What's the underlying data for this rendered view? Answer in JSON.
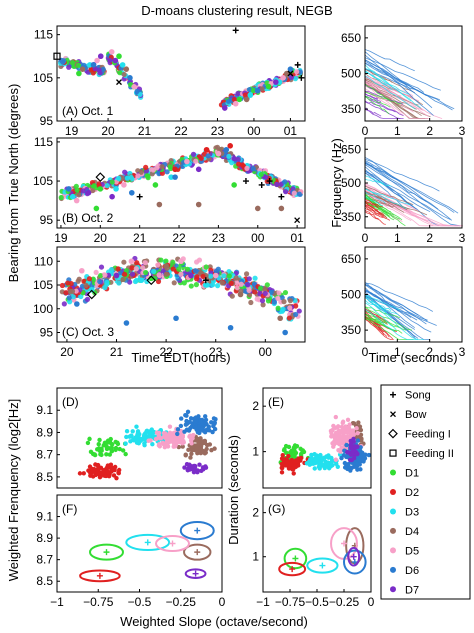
{
  "title": "D-moans clustering result, NEGB",
  "colors": {
    "D1": "#33dd33",
    "D2": "#e02020",
    "D3": "#22e0ee",
    "D4": "#9a6b5e",
    "D5": "#f7a0c8",
    "D6": "#2a7bd0",
    "D7": "#7a2cc8",
    "marker": "#000000"
  },
  "legend": {
    "items": [
      {
        "key": "song",
        "label": "Song",
        "symbol": "plus"
      },
      {
        "key": "bow",
        "label": "Bow",
        "symbol": "cross"
      },
      {
        "key": "feeding1",
        "label": "Feeding I",
        "symbol": "diamond"
      },
      {
        "key": "feeding2",
        "label": "Feeding II",
        "symbol": "square"
      },
      {
        "key": "D1",
        "label": "D1",
        "symbol": "dot"
      },
      {
        "key": "D2",
        "label": "D2",
        "symbol": "dot"
      },
      {
        "key": "D3",
        "label": "D3",
        "symbol": "dot"
      },
      {
        "key": "D4",
        "label": "D4",
        "symbol": "dot"
      },
      {
        "key": "D5",
        "label": "D5",
        "symbol": "dot"
      },
      {
        "key": "D6",
        "label": "D6",
        "symbol": "dot"
      },
      {
        "key": "D7",
        "label": "D7",
        "symbol": "dot"
      }
    ]
  },
  "chart_data": [
    {
      "id": "A",
      "type": "scatter",
      "label": "(A) Oct. 1",
      "ylabel": "Bearing from True North (degrees)",
      "xlabel": "",
      "xticks": [
        "19",
        "20",
        "21",
        "22",
        "23",
        "00",
        "01"
      ],
      "yticks": [
        95,
        105,
        115
      ],
      "ylim": [
        95,
        117
      ],
      "series": [
        {
          "cluster": "D1",
          "points": [
            [
              19.2,
              106
            ],
            [
              20.3,
              110
            ],
            [
              23.6,
              100
            ],
            [
              24.4,
              103
            ]
          ]
        },
        {
          "cluster": "D3",
          "points": [
            [
              19.5,
              108
            ],
            [
              20.4,
              108
            ],
            [
              23.9,
              101
            ],
            [
              24.7,
              104
            ]
          ]
        },
        {
          "cluster": "D4",
          "points": [
            [
              19.3,
              107
            ],
            [
              20.5,
              107
            ],
            [
              23.8,
              100
            ],
            [
              24.9,
              106
            ]
          ]
        },
        {
          "cluster": "D5",
          "points": [
            [
              19.7,
              109
            ],
            [
              20.1,
              111
            ],
            [
              23.5,
              99
            ],
            [
              24.8,
              105
            ]
          ]
        },
        {
          "cluster": "D6",
          "points": [
            [
              19.6,
              108
            ],
            [
              20.6,
              105
            ],
            [
              24.1,
              102
            ],
            [
              25.0,
              107
            ]
          ]
        },
        {
          "cluster": "D7",
          "points": [
            [
              19.8,
              110
            ],
            [
              20.2,
              109
            ],
            [
              23.2,
              98
            ],
            [
              24.6,
              104
            ]
          ]
        }
      ],
      "markers": [
        {
          "symbol": "plus",
          "points": [
            [
              23.5,
              116
            ],
            [
              25.2,
              108
            ],
            [
              25.3,
              105
            ]
          ]
        },
        {
          "symbol": "cross",
          "points": [
            [
              20.3,
              104
            ],
            [
              25.0,
              106
            ]
          ]
        },
        {
          "symbol": "square",
          "points": [
            [
              18.6,
              110
            ]
          ]
        }
      ]
    },
    {
      "id": "B",
      "type": "scatter",
      "label": "(B) Oct. 2",
      "ylabel": "",
      "xlabel": "",
      "xticks": [
        "19",
        "20",
        "21",
        "22",
        "23",
        "00",
        "01"
      ],
      "yticks": [
        95,
        105,
        115
      ],
      "ylim": [
        93,
        116
      ],
      "series": [
        {
          "cluster": "D1",
          "points": [
            [
              19.9,
              98
            ],
            [
              20.0,
              103
            ],
            [
              21.4,
              104
            ],
            [
              23.4,
              104
            ]
          ]
        },
        {
          "cluster": "D2",
          "points": [
            [
              21.9,
              108
            ],
            [
              22.7,
              113
            ],
            [
              23.3,
              114
            ]
          ]
        },
        {
          "cluster": "D3",
          "points": [
            [
              19.3,
              101
            ],
            [
              20.4,
              103
            ],
            [
              21.8,
              106
            ]
          ]
        },
        {
          "cluster": "D4",
          "points": [
            [
              21.5,
              99
            ],
            [
              22.5,
              99
            ],
            [
              24.0,
              98
            ],
            [
              24.6,
              98
            ]
          ]
        },
        {
          "cluster": "D5",
          "points": [
            [
              19.4,
              100
            ],
            [
              20.6,
              104
            ],
            [
              22.2,
              110
            ],
            [
              23.0,
              112
            ]
          ]
        },
        {
          "cluster": "D6",
          "points": [
            [
              19.2,
              103
            ],
            [
              20.8,
              102
            ],
            [
              21.9,
              106
            ],
            [
              23.2,
              113
            ]
          ]
        },
        {
          "cluster": "D7",
          "points": [
            [
              19.7,
              102
            ],
            [
              20.3,
              101
            ],
            [
              22.5,
              108
            ]
          ]
        }
      ],
      "markers": [
        {
          "symbol": "plus",
          "points": [
            [
              21.0,
              101
            ],
            [
              23.7,
              105
            ],
            [
              24.1,
              104
            ],
            [
              24.3,
              105
            ],
            [
              24.6,
              101
            ]
          ]
        },
        {
          "symbol": "cross",
          "points": [
            [
              25.0,
              95
            ]
          ]
        },
        {
          "symbol": "diamond",
          "points": [
            [
              20.0,
              106
            ]
          ]
        }
      ]
    },
    {
      "id": "C",
      "type": "scatter",
      "label": "(C) Oct. 3",
      "ylabel": "",
      "xlabel": "Time EDT(hours)",
      "xticks": [
        "20",
        "21",
        "22",
        "23",
        "00"
      ],
      "yticks": [
        95,
        100,
        105,
        110
      ],
      "ylim": [
        93,
        113
      ],
      "series": [
        {
          "cluster": "D1",
          "points": [
            [
              21.0,
              107
            ]
          ]
        },
        {
          "cluster": "D3",
          "points": [
            [
              20.5,
              104
            ],
            [
              21.5,
              106
            ],
            [
              22.8,
              105
            ]
          ]
        },
        {
          "cluster": "D4",
          "points": [
            [
              22.0,
              109
            ],
            [
              23.5,
              103
            ],
            [
              24.3,
              98
            ]
          ]
        },
        {
          "cluster": "D5",
          "points": [
            [
              20.3,
              108
            ],
            [
              21.3,
              110
            ],
            [
              22.3,
              110
            ],
            [
              23.0,
              107
            ]
          ]
        },
        {
          "cluster": "D6",
          "points": [
            [
              20.2,
              101
            ],
            [
              21.2,
              97
            ],
            [
              22.2,
              98
            ],
            [
              23.3,
              96
            ],
            [
              24.4,
              95
            ]
          ]
        },
        {
          "cluster": "D7",
          "points": [
            [
              21.0,
              107
            ],
            [
              22.5,
              107
            ]
          ]
        }
      ],
      "markers": [
        {
          "symbol": "plus",
          "points": [
            [
              22.8,
              106
            ]
          ]
        },
        {
          "symbol": "diamond",
          "points": [
            [
              20.5,
              103
            ],
            [
              21.7,
              106
            ]
          ]
        }
      ]
    },
    {
      "id": "R1",
      "type": "line",
      "ylabel": "",
      "xlabel": "",
      "xticks": [
        "0",
        "1",
        "2",
        "3"
      ],
      "yticks": [
        350,
        500,
        650
      ],
      "ylim": [
        300,
        700
      ],
      "xlim": [
        0,
        3
      ]
    },
    {
      "id": "R2",
      "type": "line",
      "ylabel": "Frequency (Hz)",
      "xlabel": "",
      "xticks": [
        "0",
        "1",
        "2",
        "3"
      ],
      "yticks": [
        350,
        500,
        650
      ],
      "ylim": [
        300,
        700
      ],
      "xlim": [
        0,
        3
      ]
    },
    {
      "id": "R3",
      "type": "line",
      "ylabel": "",
      "xlabel": "Time (seconds)",
      "xticks": [
        "0",
        "1",
        "2",
        "3"
      ],
      "yticks": [
        350,
        500,
        650
      ],
      "ylim": [
        300,
        700
      ],
      "xlim": [
        0,
        3
      ]
    },
    {
      "id": "D",
      "type": "scatter",
      "label": "(D)",
      "ylabel": "",
      "xlabel": "",
      "yticks": [
        "8.5",
        "8.7",
        "8.9",
        "9.1"
      ],
      "ylim": [
        8.4,
        9.3
      ],
      "xlim": [
        -1,
        0
      ]
    },
    {
      "id": "E",
      "type": "scatter",
      "label": "(E)",
      "ylabel": "Duration (seconds)",
      "xlabel": "",
      "yticks": [
        "1",
        "2"
      ],
      "ylim": [
        0.2,
        2.4
      ],
      "xlim": [
        -1,
        0
      ]
    },
    {
      "id": "F",
      "type": "scatter",
      "label": "(F)",
      "ylabel": "Weighted Frenquency (log2[Hz]",
      "xlabel": "",
      "xticks": [
        "−1",
        "−0.75",
        "−0.5",
        "−0.25",
        "0"
      ],
      "yticks": [
        "8.5",
        "8.7",
        "8.9",
        "9.1"
      ],
      "ylim": [
        8.4,
        9.3
      ],
      "xlim": [
        -1,
        0
      ],
      "centroids": [
        {
          "cluster": "D1",
          "x": -0.7,
          "y": 8.77
        },
        {
          "cluster": "D2",
          "x": -0.74,
          "y": 8.55
        },
        {
          "cluster": "D3",
          "x": -0.45,
          "y": 8.86
        },
        {
          "cluster": "D4",
          "x": -0.15,
          "y": 8.77
        },
        {
          "cluster": "D5",
          "x": -0.3,
          "y": 8.85
        },
        {
          "cluster": "D6",
          "x": -0.15,
          "y": 8.97
        },
        {
          "cluster": "D7",
          "x": -0.16,
          "y": 8.57
        }
      ]
    },
    {
      "id": "G",
      "type": "scatter",
      "label": "(G)",
      "ylabel": "",
      "xlabel": "",
      "xticks": [
        "−1",
        "−0.75",
        "−0.5",
        "−0.25",
        "0"
      ],
      "yticks": [
        "1",
        "2"
      ],
      "ylim": [
        0.2,
        2.4
      ],
      "xlim": [
        -1,
        0
      ],
      "centroids": [
        {
          "cluster": "D1",
          "x": -0.7,
          "y": 0.96
        },
        {
          "cluster": "D2",
          "x": -0.73,
          "y": 0.72
        },
        {
          "cluster": "D3",
          "x": -0.45,
          "y": 0.8
        },
        {
          "cluster": "D4",
          "x": -0.15,
          "y": 1.25
        },
        {
          "cluster": "D5",
          "x": -0.25,
          "y": 1.3
        },
        {
          "cluster": "D6",
          "x": -0.15,
          "y": 0.88
        },
        {
          "cluster": "D7",
          "x": -0.16,
          "y": 1.0
        }
      ]
    }
  ],
  "shared_xlabel": "Weighted Slope (octave/second)"
}
